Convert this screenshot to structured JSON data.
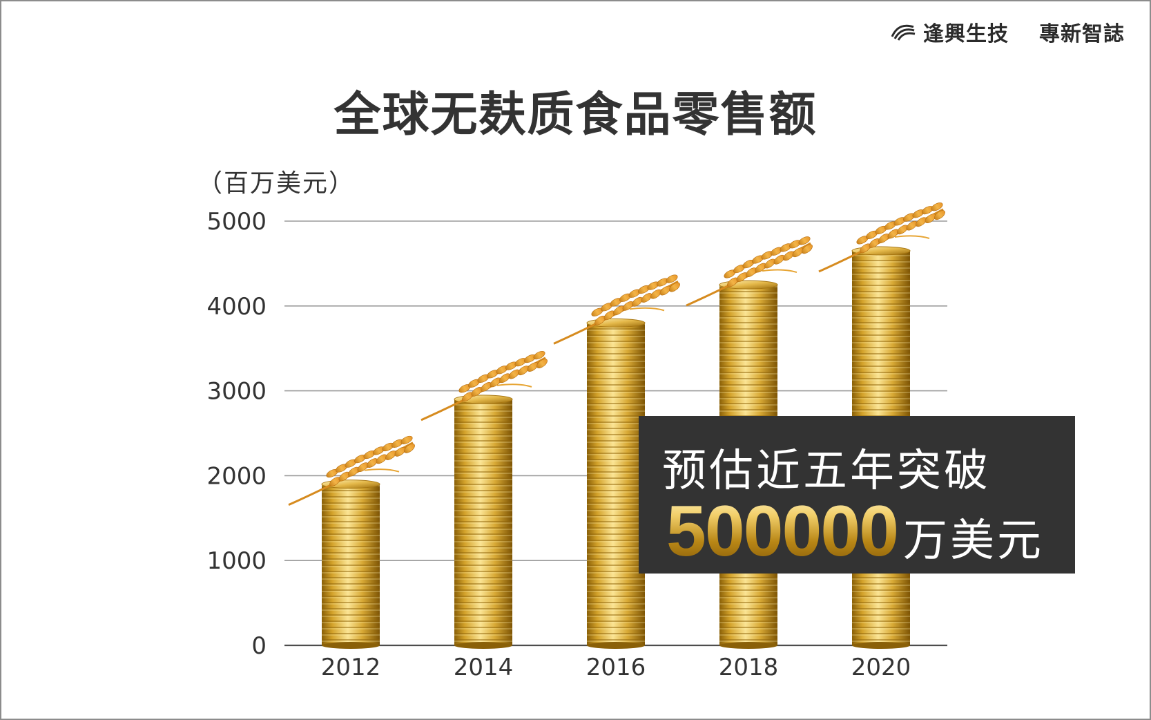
{
  "brand": {
    "name": "逢興生技",
    "subtitle": "專新智誌"
  },
  "colors": {
    "gold_light": "#f7dc7c",
    "gold_dark": "#a87712",
    "wheat": "#e7a534",
    "callout_bg": "#333333",
    "grid": "#9a9a9a",
    "text": "#333333"
  },
  "chart_data": {
    "type": "bar",
    "title": "全球无麸质食品零售额",
    "ylabel": "（百万美元）",
    "xlabel": "",
    "categories": [
      "2012",
      "2014",
      "2016",
      "2018",
      "2020"
    ],
    "values": [
      1900,
      2900,
      3800,
      4250,
      4650
    ],
    "ylim": [
      0,
      5000
    ],
    "yticks": [
      "0",
      "1000",
      "2000",
      "3000",
      "4000",
      "5000"
    ],
    "grid": true,
    "bar_style": "stacked-gold-coins-with-wheat"
  },
  "callout": {
    "line1": "预估近五年突破",
    "number": "500000",
    "suffix": "万美元"
  }
}
